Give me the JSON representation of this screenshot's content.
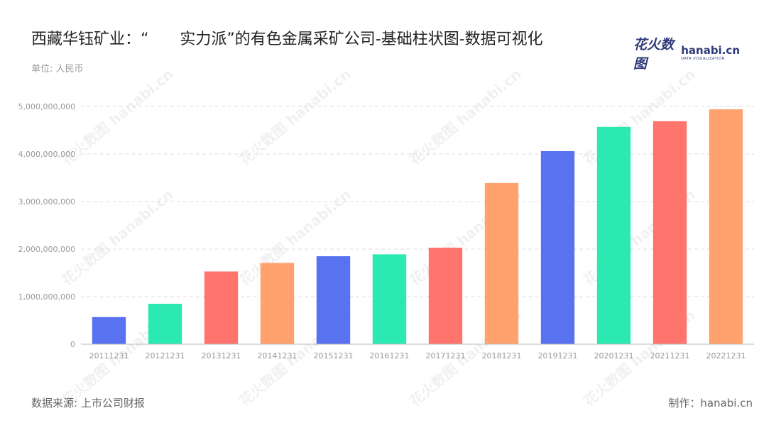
{
  "title": "西藏华钰矿业：“　　实力派”的有色金属采矿公司-基础柱状图-数据可视化",
  "unit_label": "单位: 人民币",
  "logo": {
    "cn": "花火数图",
    "en": "hanabi.cn",
    "en_sub": "DATA VISUALIZATION",
    "watermark": "花火数图 hanabi.cn"
  },
  "footer": {
    "source": "数据来源: 上市公司财报",
    "maker": "制作：hanabi.cn"
  },
  "colors": {
    "blue": "#5872F0",
    "green": "#2CE8B1",
    "red": "#FF746C",
    "orange": "#FFA26E",
    "grid": "#dddddd",
    "axis_text": "#999999"
  },
  "chart_data": {
    "type": "bar",
    "categories": [
      "20111231",
      "20121231",
      "20131231",
      "20141231",
      "20151231",
      "20161231",
      "20171231",
      "20181231",
      "20191231",
      "20201231",
      "20211231",
      "20221231"
    ],
    "values": [
      570000000,
      850000000,
      1530000000,
      1710000000,
      1850000000,
      1890000000,
      2030000000,
      3390000000,
      4060000000,
      4570000000,
      4690000000,
      4940000000
    ],
    "bar_colors": [
      "#5872F0",
      "#2CE8B1",
      "#FF746C",
      "#FFA26E",
      "#5872F0",
      "#2CE8B1",
      "#FF746C",
      "#FFA26E",
      "#5872F0",
      "#2CE8B1",
      "#FF746C",
      "#FFA26E"
    ],
    "ylim": [
      0,
      5000000000
    ],
    "yticks": [
      0,
      1000000000,
      2000000000,
      3000000000,
      4000000000,
      5000000000
    ],
    "ytick_labels": [
      "0",
      "1,000,000,000",
      "2,000,000,000",
      "3,000,000,000",
      "4,000,000,000",
      "5,000,000,000"
    ],
    "grid": true,
    "xlabel": "",
    "ylabel": ""
  }
}
